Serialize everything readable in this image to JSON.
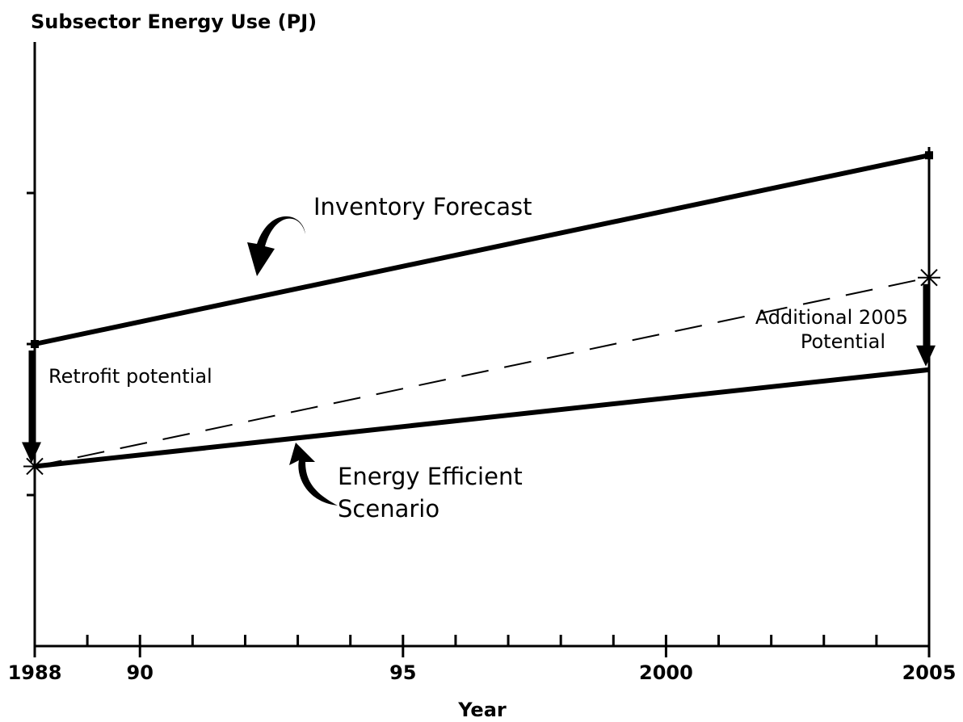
{
  "chart_data": {
    "type": "line",
    "title": "Subsector Energy Use (PJ)",
    "x_label": "Year",
    "x": [
      1988,
      2005
    ],
    "series": [
      {
        "name": "Inventory Forecast",
        "color": "#000000",
        "values": [
          2.0,
          3.25
        ]
      },
      {
        "name": "Energy Efficient Scenario",
        "color": "#000000",
        "values": [
          1.19,
          1.83
        ]
      },
      {
        "color": "#000000",
        "dashed": true,
        "values": [
          1.19,
          2.44
        ]
      }
    ],
    "annotations": [
      {
        "lines": [
          "Inventory Forecast"
        ]
      },
      {
        "lines": [
          "Energy Efficient",
          "Scenario"
        ]
      },
      {
        "lines": [
          "Retrofit potential"
        ]
      },
      {
        "lines": [
          "Additional 2005",
          "Potential"
        ]
      }
    ],
    "xlim": [
      1988,
      2005
    ],
    "xticks": [
      1988,
      {
        "value": 1990,
        "label": "90"
      },
      {
        "value": 1995,
        "label": "95"
      },
      2000,
      2005
    ],
    "xminorticks": [
      1989,
      1991,
      1992,
      1993,
      1994,
      1996,
      1997,
      1998,
      1999,
      2001,
      2002,
      2003,
      2004
    ],
    "ylim": [
      0,
      4
    ],
    "yticks": [
      1,
      2,
      3
    ]
  }
}
